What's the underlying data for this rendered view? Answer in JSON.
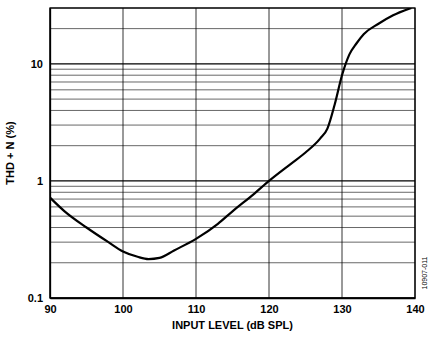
{
  "chart_data": {
    "type": "line",
    "x_label": "INPUT LEVEL (dB SPL)",
    "y_label": "THD + N (%)",
    "annotation": "10907-011",
    "x": [
      90,
      92,
      95,
      98,
      100,
      102,
      103.5,
      105,
      107,
      110,
      113,
      115,
      118,
      120,
      123,
      125,
      127,
      128,
      129,
      130,
      131,
      132,
      133,
      135,
      137,
      139.5
    ],
    "values": [
      0.72,
      0.55,
      0.4,
      0.3,
      0.25,
      0.225,
      0.215,
      0.22,
      0.255,
      0.32,
      0.43,
      0.55,
      0.78,
      1.0,
      1.4,
      1.75,
      2.3,
      2.8,
      4.5,
      8,
      12,
      15,
      18,
      22,
      26,
      30
    ],
    "color": "#000000",
    "xlim": [
      90,
      140
    ],
    "xticks": [
      90,
      100,
      110,
      120,
      130,
      140
    ],
    "ylim": [
      0.1,
      30
    ],
    "yticks": [
      0.1,
      1,
      10
    ],
    "log": "y",
    "grid": true
  }
}
